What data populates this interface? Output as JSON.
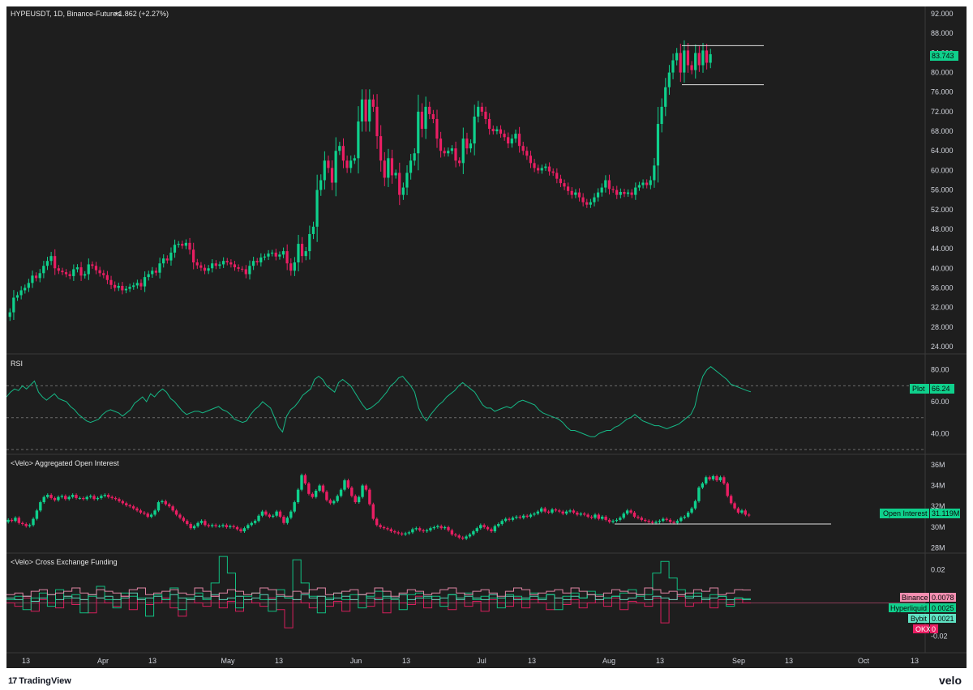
{
  "header": {
    "symbol_line": "HYPEUSDT, 1D, Binance-Futures",
    "change": "+1.862 (+2.27%)"
  },
  "colors": {
    "up": "#0fd08c",
    "down": "#e91e63",
    "background": "#1e1e1e",
    "rsi_line": "#16b886",
    "text": "#d1d4dc"
  },
  "footer": {
    "tradingview": "TradingView",
    "tradingview_mark": "17",
    "velo": "velo"
  },
  "chart_data": [
    {
      "type": "candlestick",
      "title": "HYPEUSDT, 1D, Binance-Futures",
      "last_price": 83.743,
      "last_price_label": "83.743",
      "ylim": [
        22.5,
        93.5
      ],
      "yticks": [
        "92.000",
        "88.000",
        "84.000",
        "80.000",
        "76.000",
        "72.000",
        "68.000",
        "64.000",
        "60.000",
        "56.000",
        "52.000",
        "48.000",
        "44.000",
        "40.000",
        "36.000",
        "32.000",
        "28.000",
        "24.000"
      ],
      "ytick_values": [
        92,
        88,
        84,
        80,
        76,
        72,
        68,
        64,
        60,
        56,
        52,
        48,
        44,
        40,
        36,
        32,
        28,
        24
      ],
      "horizontal_lines": [
        85.5,
        77.5
      ],
      "x_labels": [
        "13",
        "Apr",
        "13",
        "May",
        "13",
        "Jun",
        "13",
        "Jul",
        "13",
        "Aug",
        "13",
        "Sep",
        "13",
        "Oct",
        "13"
      ],
      "close": [
        31.0,
        34.0,
        34.5,
        35.5,
        36.0,
        37.0,
        38.5,
        38.0,
        39.0,
        40.5,
        41.5,
        42.5,
        40.0,
        39.5,
        39.2,
        38.8,
        38.4,
        39.8,
        40.2,
        38.5,
        38.8,
        40.8,
        40.5,
        39.6,
        39.0,
        38.6,
        37.6,
        36.6,
        36.0,
        36.4,
        35.5,
        35.8,
        36.2,
        36.5,
        37.0,
        36.3,
        38.2,
        38.8,
        39.5,
        39.1,
        41.0,
        42.0,
        41.6,
        43.2,
        44.8,
        45.0,
        44.6,
        45.2,
        43.8,
        41.2,
        40.6,
        40.1,
        39.5,
        40.0,
        41.0,
        40.5,
        40.8,
        41.5,
        41.2,
        40.8,
        40.2,
        39.9,
        39.8,
        38.8,
        40.5,
        41.5,
        41.2,
        42.2,
        42.4,
        43.0,
        43.2,
        42.4,
        42.8,
        43.5,
        41.0,
        39.5,
        41.2,
        45.0,
        42.5,
        43.5,
        47.0,
        48.5,
        56.0,
        58.0,
        62.0,
        60.5,
        57.5,
        64.0,
        65.0,
        62.0,
        60.5,
        62.0,
        62.5,
        70.0,
        74.5,
        70.0,
        74.5,
        73.0,
        67.0,
        62.0,
        58.5,
        62.5,
        59.0,
        59.5,
        55.0,
        56.5,
        59.5,
        62.0,
        63.5,
        72.0,
        68.5,
        73.0,
        71.5,
        70.5,
        66.5,
        64.0,
        63.5,
        64.0,
        64.5,
        62.0,
        61.5,
        66.5,
        64.5,
        65.5,
        71.0,
        73.0,
        72.0,
        70.5,
        68.5,
        68.0,
        68.4,
        67.5,
        66.8,
        65.5,
        66.5,
        67.5,
        65.0,
        64.0,
        63.0,
        61.5,
        60.5,
        60.0,
        60.5,
        60.8,
        59.8,
        59.5,
        58.3,
        57.4,
        56.7,
        55.8,
        55.0,
        55.5,
        54.5,
        53.5,
        53.0,
        53.5,
        54.5,
        55.5,
        56.5,
        58.0,
        56.2,
        56.0,
        55.0,
        55.6,
        55.2,
        55.5,
        55.0,
        56.5,
        57.0,
        57.5,
        57.0,
        58.0,
        61.0,
        69.5,
        73.0,
        77.0,
        80.0,
        82.5,
        84.0,
        80.0,
        84.5,
        81.5,
        80.5,
        84.0,
        81.5,
        84.5,
        82.0,
        83.743
      ],
      "up_color": "#0fd08c",
      "down_color": "#e91e63"
    },
    {
      "type": "line",
      "title": "RSI",
      "value_label": "Plot",
      "last_value": 66.24,
      "last_value_label": "66.24",
      "ylim": [
        27,
        90
      ],
      "yticks": [
        "80.00",
        "60.00",
        "40.00"
      ],
      "ytick_values": [
        80,
        60,
        40
      ],
      "bands": [
        70,
        50,
        30
      ],
      "values": [
        63.0,
        66.0,
        68.0,
        67.0,
        70.0,
        68.0,
        70.5,
        73.0,
        66.0,
        63.0,
        61.0,
        63.0,
        65.0,
        62.0,
        61.0,
        60.0,
        57.0,
        55.0,
        52.0,
        50.0,
        48.0,
        47.0,
        48.0,
        49.0,
        52.0,
        54.0,
        55.0,
        54.0,
        53.0,
        51.0,
        53.0,
        55.0,
        59.0,
        61.0,
        63.0,
        60.0,
        65.0,
        63.0,
        66.0,
        68.0,
        66.0,
        62.0,
        60.0,
        57.0,
        54.0,
        52.0,
        53.0,
        54.0,
        54.0,
        53.0,
        54.0,
        55.0,
        56.0,
        57.0,
        55.0,
        54.0,
        52.0,
        49.0,
        48.0,
        47.0,
        48.0,
        52.0,
        55.0,
        57.0,
        60.0,
        58.0,
        56.0,
        50.0,
        44.0,
        41.0,
        51.0,
        55.0,
        57.0,
        60.0,
        64.0,
        66.0,
        68.0,
        74.0,
        76.0,
        74.0,
        70.0,
        68.0,
        66.0,
        72.0,
        74.0,
        72.0,
        70.0,
        66.0,
        62.0,
        58.0,
        55.0,
        56.0,
        58.0,
        60.0,
        63.0,
        66.0,
        70.0,
        72.0,
        75.0,
        76.0,
        73.0,
        70.0,
        66.0,
        56.0,
        51.0,
        48.0,
        52.0,
        55.0,
        58.0,
        60.0,
        63.0,
        65.0,
        67.0,
        70.0,
        72.0,
        70.0,
        68.0,
        66.0,
        62.0,
        58.0,
        56.0,
        56.0,
        54.0,
        55.0,
        56.0,
        57.0,
        56.0,
        58.0,
        60.0,
        61.0,
        60.0,
        59.0,
        58.0,
        55.0,
        53.0,
        52.0,
        51.0,
        50.0,
        49.0,
        47.0,
        44.0,
        42.0,
        42.0,
        41.0,
        40.0,
        39.0,
        38.0,
        38.0,
        40.0,
        41.0,
        42.0,
        42.0,
        44.0,
        45.0,
        47.0,
        49.0,
        50.0,
        52.0,
        50.0,
        48.0,
        47.0,
        46.0,
        45.0,
        45.0,
        44.0,
        43.0,
        44.0,
        45.0,
        46.0,
        48.0,
        50.0,
        52.0,
        57.0,
        68.0,
        76.0,
        80.0,
        82.0,
        80.0,
        78.0,
        76.0,
        74.0,
        71.0,
        70.0,
        69.0,
        68.0,
        67.0,
        66.24
      ]
    },
    {
      "type": "candlestick",
      "title": "<Velo> Aggregated Open Interest",
      "value_label": "Open Interest",
      "last_value": 31.119,
      "last_value_label": "31.119M",
      "ylim": [
        27.5,
        37.0
      ],
      "yticks": [
        "36M",
        "34M",
        "32M",
        "30M",
        "28M"
      ],
      "ytick_values": [
        36,
        34,
        32,
        30,
        28
      ],
      "horizontal_lines": [
        30.3
      ],
      "close": [
        30.7,
        30.6,
        30.9,
        30.4,
        30.3,
        30.1,
        30.2,
        30.8,
        31.6,
        32.4,
        32.9,
        33.1,
        32.8,
        32.6,
        32.9,
        33.0,
        32.7,
        32.9,
        33.1,
        32.8,
        32.8,
        32.7,
        32.9,
        33.0,
        32.7,
        32.8,
        33.0,
        33.1,
        32.9,
        32.8,
        32.7,
        32.5,
        32.3,
        32.1,
        32.0,
        31.8,
        31.6,
        31.4,
        31.3,
        31.0,
        31.2,
        31.6,
        32.4,
        32.5,
        32.2,
        32.0,
        31.6,
        31.2,
        30.9,
        30.6,
        30.3,
        29.9,
        30.1,
        30.4,
        30.6,
        30.2,
        30.1,
        30.2,
        30.1,
        30.1,
        30.2,
        30.0,
        30.1,
        30.0,
        29.8,
        29.6,
        29.9,
        30.2,
        30.4,
        30.6,
        31.1,
        31.5,
        31.2,
        31.0,
        31.1,
        31.5,
        31.0,
        30.4,
        30.9,
        31.5,
        32.4,
        33.6,
        35.0,
        34.2,
        33.2,
        32.9,
        33.5,
        34.0,
        33.4,
        32.6,
        32.3,
        32.5,
        33.0,
        33.6,
        34.5,
        33.8,
        33.0,
        32.4,
        32.9,
        34.0,
        33.6,
        32.2,
        30.8,
        30.2,
        30.0,
        29.9,
        29.8,
        29.6,
        29.5,
        29.4,
        29.3,
        29.4,
        29.5,
        29.8,
        29.9,
        29.7,
        29.6,
        29.7,
        29.9,
        30.0,
        30.1,
        29.9,
        30.0,
        29.7,
        29.3,
        29.2,
        29.0,
        28.9,
        29.1,
        29.3,
        29.6,
        29.9,
        30.2,
        30.0,
        29.8,
        29.6,
        30.1,
        30.3,
        30.6,
        30.8,
        30.7,
        30.9,
        31.0,
        30.9,
        31.1,
        31.0,
        31.2,
        31.3,
        31.5,
        31.8,
        31.5,
        31.4,
        31.7,
        31.6,
        31.5,
        31.3,
        31.5,
        31.6,
        31.4,
        31.2,
        31.3,
        31.2,
        31.0,
        30.9,
        31.2,
        30.8,
        31.0,
        30.7,
        30.5,
        30.6,
        30.7,
        30.9,
        31.3,
        31.6,
        31.4,
        31.0,
        30.9,
        30.7,
        30.6,
        30.5,
        30.4,
        30.5,
        30.6,
        30.8,
        30.7,
        30.5,
        30.4,
        30.6,
        30.9,
        31.0,
        31.4,
        31.8,
        32.5,
        33.8,
        34.2,
        34.8,
        34.6,
        34.9,
        34.5,
        34.8,
        34.2,
        33.0,
        32.3,
        31.8,
        31.4,
        31.6,
        31.2,
        31.119
      ],
      "up_color": "#0fd08c",
      "down_color": "#e91e63"
    },
    {
      "type": "step",
      "title": "<Velo> Cross Exchange Funding",
      "ylim": [
        -0.03,
        0.03
      ],
      "yticks": [
        "0.02",
        "-0.02"
      ],
      "ytick_values": [
        0.02,
        -0.02
      ],
      "series": [
        {
          "name": "Binance",
          "value": 0.0078,
          "label": "0.0078",
          "color": "#f48fb1",
          "values": [
            0.005,
            0.006,
            0.004,
            0.007,
            0.008,
            0.005,
            0.006,
            0.007,
            0.009,
            0.006,
            0.005,
            0.008,
            0.007,
            0.006,
            0.004,
            0.008,
            0.009,
            0.005,
            0.006,
            0.007,
            0.008,
            0.006,
            0.005,
            0.009,
            0.007,
            0.004,
            0.006,
            0.008,
            0.007,
            0.005,
            0.006,
            0.009,
            0.008,
            0.005,
            0.004,
            0.007,
            0.006,
            0.008,
            0.009,
            0.005,
            0.006,
            0.007,
            0.008,
            0.005,
            0.006,
            0.009,
            0.007,
            0.004,
            0.006,
            0.008,
            0.007,
            0.005,
            0.006,
            0.008,
            0.009,
            0.006,
            0.005,
            0.007,
            0.008,
            0.006,
            0.004,
            0.007,
            0.009,
            0.008,
            0.005,
            0.006,
            0.007,
            0.008,
            0.006,
            0.009,
            0.007,
            0.005,
            0.004,
            0.006,
            0.008,
            0.007,
            0.006,
            0.005,
            0.009,
            0.008,
            0.006,
            0.007,
            0.005,
            0.006,
            0.008,
            0.007,
            0.009,
            0.005,
            0.006,
            0.008,
            0.0078
          ]
        },
        {
          "name": "Hyperliquid",
          "value": 0.0025,
          "label": "0.0025",
          "color": "#0fd08c",
          "values": [
            0.002,
            0.004,
            -0.004,
            0.003,
            0.006,
            -0.002,
            0.008,
            0.003,
            0.005,
            -0.006,
            0.004,
            0.01,
            0.002,
            -0.003,
            0.006,
            0.004,
            0.003,
            -0.008,
            0.005,
            0.002,
            0.009,
            -0.004,
            0.003,
            0.006,
            0.002,
            0.012,
            0.028,
            0.018,
            -0.003,
            0.004,
            0.006,
            0.002,
            -0.005,
            0.008,
            0.003,
            0.026,
            0.012,
            0.004,
            -0.006,
            0.003,
            0.006,
            0.002,
            0.005,
            -0.003,
            0.004,
            0.007,
            0.003,
            0.002,
            -0.004,
            0.005,
            0.006,
            0.003,
            0.004,
            -0.002,
            0.005,
            0.003,
            0.006,
            0.002,
            0.004,
            0.003,
            -0.003,
            0.005,
            0.004,
            0.002,
            0.006,
            0.003,
            0.005,
            -0.004,
            0.004,
            0.006,
            0.003,
            0.007,
            0.005,
            0.003,
            0.004,
            0.006,
            0.008,
            0.004,
            0.005,
            0.018,
            0.025,
            0.015,
            0.008,
            0.004,
            0.006,
            0.003,
            0.005,
            0.004,
            -0.002,
            0.003,
            0.0025
          ]
        },
        {
          "name": "Bybit",
          "value": 0.0021,
          "label": "0.0021",
          "color": "#5fe2c3",
          "values": [
            0.003,
            0.002,
            0.004,
            0.001,
            0.003,
            0.005,
            0.002,
            0.004,
            0.003,
            0.002,
            0.005,
            0.003,
            0.004,
            0.002,
            0.003,
            0.006,
            0.002,
            0.003,
            0.004,
            0.002,
            0.005,
            0.003,
            0.002,
            0.004,
            0.003,
            0.005,
            0.002,
            0.003,
            0.004,
            0.002,
            0.003,
            0.005,
            0.002,
            0.004,
            0.003,
            0.002,
            0.005,
            0.003,
            0.004,
            0.002,
            0.003,
            0.004,
            0.002,
            0.005,
            0.003,
            0.002,
            0.004,
            0.003,
            0.005,
            0.002,
            0.003,
            0.004,
            0.002,
            0.003,
            0.005,
            0.002,
            0.004,
            0.003,
            0.002,
            0.005,
            0.003,
            0.004,
            0.002,
            0.003,
            0.004,
            0.002,
            0.005,
            0.003,
            0.002,
            0.004,
            0.003,
            0.005,
            0.002,
            0.003,
            0.004,
            0.002,
            0.003,
            0.005,
            0.002,
            0.004,
            0.003,
            0.002,
            0.005,
            0.003,
            0.004,
            0.002,
            0.003,
            0.004,
            0.002,
            0.003,
            0.0021
          ]
        },
        {
          "name": "OKX",
          "value": 0,
          "label": "0",
          "color": "#e91e63",
          "values": [
            0,
            -0.002,
            0.003,
            -0.005,
            0.002,
            0,
            -0.003,
            0.004,
            -0.001,
            0.002,
            -0.006,
            0.003,
            0,
            -0.002,
            0.004,
            -0.004,
            0.002,
            -0.001,
            0,
            0.003,
            -0.003,
            -0.008,
            0.002,
            0,
            -0.002,
            0.004,
            -0.003,
            0.001,
            -0.005,
            0.002,
            0,
            -0.002,
            0.003,
            -0.004,
            -0.015,
            0.002,
            0,
            -0.003,
            0.004,
            -0.002,
            0.001,
            -0.005,
            0.002,
            0,
            -0.002,
            0.003,
            -0.006,
            0.002,
            0,
            -0.001,
            0.004,
            -0.003,
            0.002,
            0,
            -0.004,
            0.003,
            -0.002,
            0.001,
            -0.005,
            0.002,
            0,
            -0.002,
            0.003,
            -0.003,
            0.002,
            0,
            -0.004,
            0.003,
            -0.001,
            0.002,
            -0.003,
            0,
            0.002,
            -0.002,
            0.003,
            -0.004,
            0.001,
            0,
            -0.002,
            0.003,
            -0.012,
            0.002,
            0.004,
            -0.002,
            0,
            0.003,
            -0.003,
            0.002,
            -0.001,
            0.002,
            0
          ]
        }
      ]
    }
  ]
}
